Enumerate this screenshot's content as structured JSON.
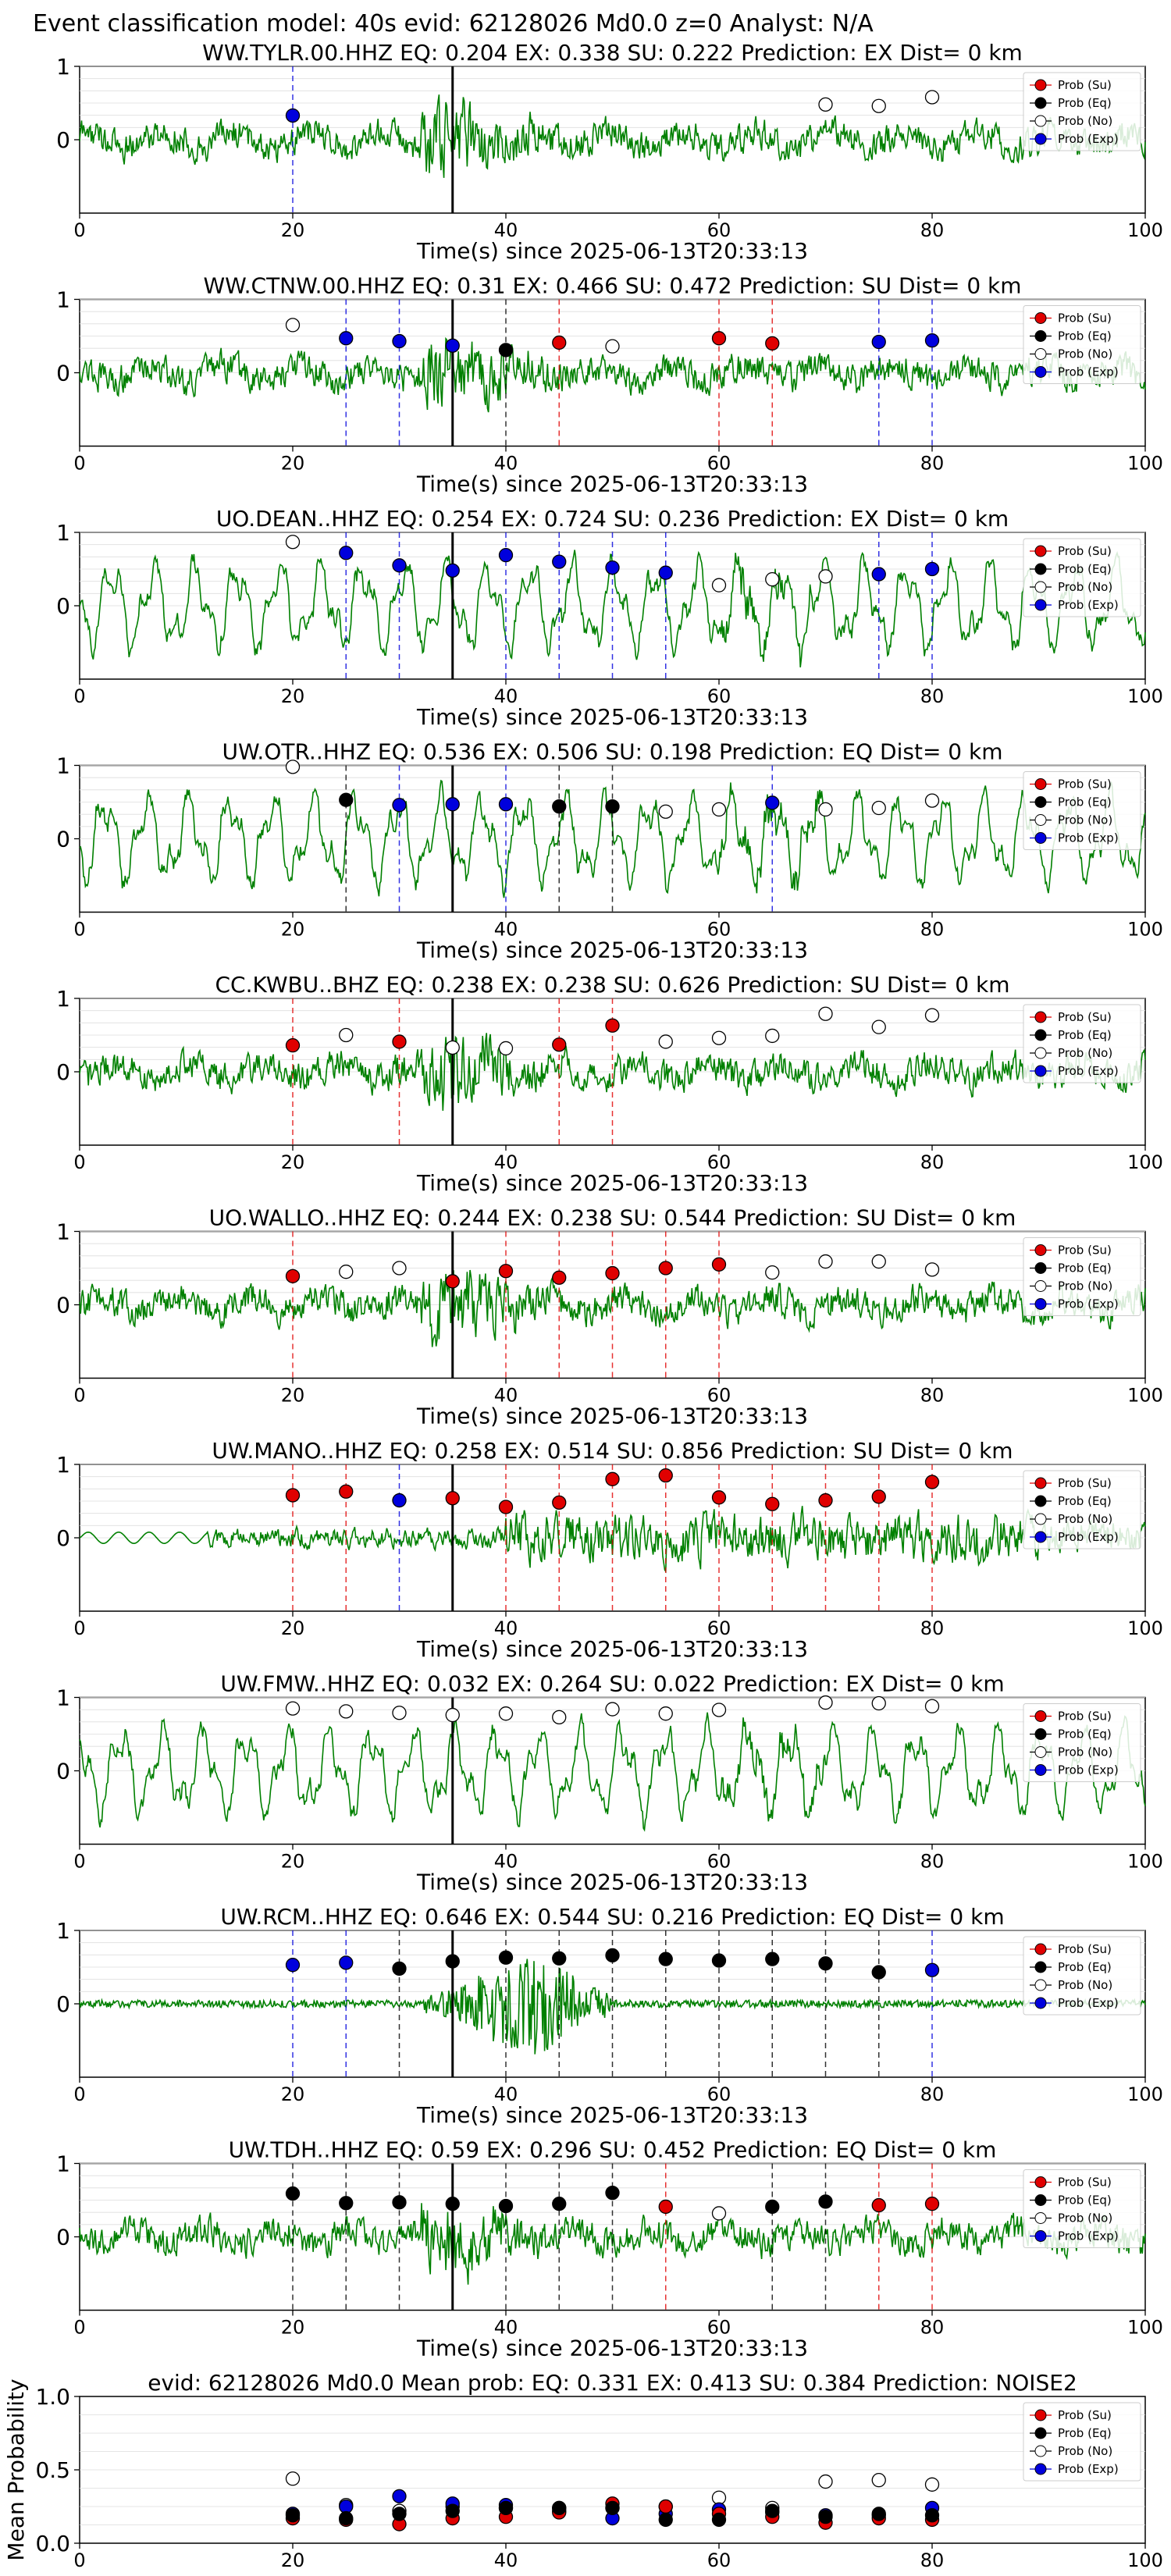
{
  "title": "Event classification model: 40s evid: 62128026 Md0.0 z=0 Analyst: N/A",
  "xlabel": "Time(s) since 2025-06-13T20:33:13",
  "legend": [
    "Prob (Su)",
    "Prob (Eq)",
    "Prob (No)",
    "Prob (Exp)"
  ],
  "colors": {
    "su": "#e00000",
    "eq": "#000000",
    "no": "#ffffff",
    "exp": "#0000dd",
    "trace": "#008000",
    "event_line": "#000000"
  },
  "chart_data": [
    {
      "type": "line",
      "title": "WW.TYLR.00.HHZ   EQ: 0.204  EX: 0.338  SU: 0.222   Prediction: EX    Dist= 0 km",
      "xlim": [
        0,
        100
      ],
      "ylim": [
        -1,
        1
      ],
      "xticks": [
        0,
        20,
        40,
        60,
        80,
        100
      ],
      "yticks": [
        "1",
        "0"
      ],
      "event_time": 35,
      "trace": "broadband",
      "points": [
        {
          "x": 20,
          "y": 0.33,
          "class": "exp"
        },
        {
          "x": 70,
          "y": 0.48,
          "class": "no"
        },
        {
          "x": 75,
          "y": 0.46,
          "class": "no"
        },
        {
          "x": 80,
          "y": 0.58,
          "class": "no"
        }
      ]
    },
    {
      "type": "line",
      "title": "WW.CTNW.00.HHZ   EQ: 0.31  EX: 0.466  SU: 0.472   Prediction: SU    Dist= 0 km",
      "xlim": [
        0,
        100
      ],
      "ylim": [
        -1,
        1
      ],
      "xticks": [
        0,
        20,
        40,
        60,
        80,
        100
      ],
      "yticks": [
        "1",
        "0"
      ],
      "event_time": 35,
      "trace": "broadband",
      "points": [
        {
          "x": 20,
          "y": 0.65,
          "class": "no"
        },
        {
          "x": 25,
          "y": 0.47,
          "class": "exp"
        },
        {
          "x": 30,
          "y": 0.43,
          "class": "exp"
        },
        {
          "x": 35,
          "y": 0.37,
          "class": "exp"
        },
        {
          "x": 40,
          "y": 0.31,
          "class": "eq"
        },
        {
          "x": 45,
          "y": 0.41,
          "class": "su"
        },
        {
          "x": 50,
          "y": 0.36,
          "class": "no"
        },
        {
          "x": 60,
          "y": 0.47,
          "class": "su"
        },
        {
          "x": 65,
          "y": 0.4,
          "class": "su"
        },
        {
          "x": 75,
          "y": 0.42,
          "class": "exp"
        },
        {
          "x": 80,
          "y": 0.44,
          "class": "exp"
        }
      ]
    },
    {
      "type": "line",
      "title": "UO.DEAN..HHZ   EQ: 0.254  EX: 0.724  SU: 0.236   Prediction: EX    Dist= 0 km",
      "xlim": [
        0,
        100
      ],
      "ylim": [
        -1,
        1
      ],
      "xticks": [
        0,
        20,
        40,
        60,
        80,
        100
      ],
      "yticks": [
        "1",
        "0"
      ],
      "event_time": 35,
      "trace": "oscillatory",
      "points": [
        {
          "x": 20,
          "y": 0.87,
          "class": "no"
        },
        {
          "x": 25,
          "y": 0.72,
          "class": "exp"
        },
        {
          "x": 30,
          "y": 0.55,
          "class": "exp"
        },
        {
          "x": 35,
          "y": 0.48,
          "class": "exp"
        },
        {
          "x": 40,
          "y": 0.69,
          "class": "exp"
        },
        {
          "x": 45,
          "y": 0.6,
          "class": "exp"
        },
        {
          "x": 50,
          "y": 0.52,
          "class": "exp"
        },
        {
          "x": 55,
          "y": 0.45,
          "class": "exp"
        },
        {
          "x": 60,
          "y": 0.28,
          "class": "no"
        },
        {
          "x": 65,
          "y": 0.36,
          "class": "no"
        },
        {
          "x": 70,
          "y": 0.4,
          "class": "no"
        },
        {
          "x": 75,
          "y": 0.43,
          "class": "exp"
        },
        {
          "x": 80,
          "y": 0.5,
          "class": "exp"
        }
      ]
    },
    {
      "type": "line",
      "title": "UW.OTR..HHZ   EQ: 0.536  EX: 0.506  SU: 0.198   Prediction: EQ    Dist= 0 km",
      "xlim": [
        0,
        100
      ],
      "ylim": [
        -1,
        1
      ],
      "xticks": [
        0,
        20,
        40,
        60,
        80,
        100
      ],
      "yticks": [
        "1",
        "0"
      ],
      "event_time": 35,
      "trace": "oscillatory",
      "points": [
        {
          "x": 20,
          "y": 0.98,
          "class": "no"
        },
        {
          "x": 25,
          "y": 0.53,
          "class": "eq"
        },
        {
          "x": 30,
          "y": 0.46,
          "class": "exp"
        },
        {
          "x": 35,
          "y": 0.47,
          "class": "exp"
        },
        {
          "x": 40,
          "y": 0.47,
          "class": "exp"
        },
        {
          "x": 45,
          "y": 0.44,
          "class": "eq"
        },
        {
          "x": 50,
          "y": 0.44,
          "class": "eq"
        },
        {
          "x": 55,
          "y": 0.37,
          "class": "no"
        },
        {
          "x": 60,
          "y": 0.4,
          "class": "no"
        },
        {
          "x": 65,
          "y": 0.49,
          "class": "exp"
        },
        {
          "x": 70,
          "y": 0.4,
          "class": "no"
        },
        {
          "x": 75,
          "y": 0.42,
          "class": "no"
        },
        {
          "x": 80,
          "y": 0.52,
          "class": "no"
        }
      ]
    },
    {
      "type": "line",
      "title": "CC.KWBU..BHZ   EQ: 0.238  EX: 0.238  SU: 0.626   Prediction: SU    Dist= 0 km",
      "xlim": [
        0,
        100
      ],
      "ylim": [
        -1,
        1
      ],
      "xticks": [
        0,
        20,
        40,
        60,
        80,
        100
      ],
      "yticks": [
        "1",
        "0"
      ],
      "event_time": 35,
      "trace": "broadband",
      "points": [
        {
          "x": 20,
          "y": 0.36,
          "class": "su"
        },
        {
          "x": 25,
          "y": 0.5,
          "class": "no"
        },
        {
          "x": 30,
          "y": 0.41,
          "class": "su"
        },
        {
          "x": 35,
          "y": 0.33,
          "class": "no"
        },
        {
          "x": 40,
          "y": 0.32,
          "class": "no"
        },
        {
          "x": 45,
          "y": 0.37,
          "class": "su"
        },
        {
          "x": 50,
          "y": 0.63,
          "class": "su"
        },
        {
          "x": 55,
          "y": 0.41,
          "class": "no"
        },
        {
          "x": 60,
          "y": 0.46,
          "class": "no"
        },
        {
          "x": 65,
          "y": 0.49,
          "class": "no"
        },
        {
          "x": 70,
          "y": 0.79,
          "class": "no"
        },
        {
          "x": 75,
          "y": 0.61,
          "class": "no"
        },
        {
          "x": 80,
          "y": 0.77,
          "class": "no"
        }
      ]
    },
    {
      "type": "line",
      "title": "UO.WALLO..HHZ   EQ: 0.244  EX: 0.238  SU: 0.544   Prediction: SU    Dist= 0 km",
      "xlim": [
        0,
        100
      ],
      "ylim": [
        -1,
        1
      ],
      "xticks": [
        0,
        20,
        40,
        60,
        80,
        100
      ],
      "yticks": [
        "1",
        "0"
      ],
      "event_time": 35,
      "trace": "broadband",
      "points": [
        {
          "x": 20,
          "y": 0.39,
          "class": "su"
        },
        {
          "x": 25,
          "y": 0.45,
          "class": "no"
        },
        {
          "x": 30,
          "y": 0.5,
          "class": "no"
        },
        {
          "x": 35,
          "y": 0.32,
          "class": "su"
        },
        {
          "x": 40,
          "y": 0.46,
          "class": "su"
        },
        {
          "x": 45,
          "y": 0.37,
          "class": "su"
        },
        {
          "x": 50,
          "y": 0.43,
          "class": "su"
        },
        {
          "x": 55,
          "y": 0.5,
          "class": "su"
        },
        {
          "x": 60,
          "y": 0.55,
          "class": "su"
        },
        {
          "x": 65,
          "y": 0.44,
          "class": "no"
        },
        {
          "x": 70,
          "y": 0.59,
          "class": "no"
        },
        {
          "x": 75,
          "y": 0.59,
          "class": "no"
        },
        {
          "x": 80,
          "y": 0.48,
          "class": "no"
        }
      ]
    },
    {
      "type": "line",
      "title": "UW.MANO..HHZ   EQ: 0.258  EX: 0.514  SU: 0.856   Prediction: SU    Dist= 0 km",
      "xlim": [
        0,
        100
      ],
      "ylim": [
        -1,
        1
      ],
      "xticks": [
        0,
        20,
        40,
        60,
        80,
        100
      ],
      "yticks": [
        "1",
        "0"
      ],
      "event_time": 35,
      "trace": "quiet-start",
      "points": [
        {
          "x": 20,
          "y": 0.58,
          "class": "su"
        },
        {
          "x": 25,
          "y": 0.63,
          "class": "su"
        },
        {
          "x": 30,
          "y": 0.51,
          "class": "exp"
        },
        {
          "x": 35,
          "y": 0.54,
          "class": "su"
        },
        {
          "x": 40,
          "y": 0.42,
          "class": "su"
        },
        {
          "x": 45,
          "y": 0.48,
          "class": "su"
        },
        {
          "x": 50,
          "y": 0.8,
          "class": "su"
        },
        {
          "x": 55,
          "y": 0.85,
          "class": "su"
        },
        {
          "x": 60,
          "y": 0.55,
          "class": "su"
        },
        {
          "x": 65,
          "y": 0.46,
          "class": "su"
        },
        {
          "x": 70,
          "y": 0.51,
          "class": "su"
        },
        {
          "x": 75,
          "y": 0.56,
          "class": "su"
        },
        {
          "x": 80,
          "y": 0.76,
          "class": "su"
        }
      ]
    },
    {
      "type": "line",
      "title": "UW.FMW..HHZ   EQ: 0.032  EX: 0.264  SU: 0.022   Prediction: EX    Dist= 0 km",
      "xlim": [
        0,
        100
      ],
      "ylim": [
        -1,
        1
      ],
      "xticks": [
        0,
        20,
        40,
        60,
        80,
        100
      ],
      "yticks": [
        "1",
        "0"
      ],
      "event_time": 35,
      "trace": "oscillatory",
      "points": [
        {
          "x": 20,
          "y": 0.85,
          "class": "no"
        },
        {
          "x": 25,
          "y": 0.81,
          "class": "no"
        },
        {
          "x": 30,
          "y": 0.79,
          "class": "no"
        },
        {
          "x": 35,
          "y": 0.76,
          "class": "no"
        },
        {
          "x": 40,
          "y": 0.78,
          "class": "no"
        },
        {
          "x": 45,
          "y": 0.73,
          "class": "no"
        },
        {
          "x": 50,
          "y": 0.84,
          "class": "no"
        },
        {
          "x": 55,
          "y": 0.78,
          "class": "no"
        },
        {
          "x": 60,
          "y": 0.83,
          "class": "no"
        },
        {
          "x": 70,
          "y": 0.93,
          "class": "no"
        },
        {
          "x": 75,
          "y": 0.92,
          "class": "no"
        },
        {
          "x": 80,
          "y": 0.88,
          "class": "no"
        }
      ]
    },
    {
      "type": "line",
      "title": "UW.RCM..HHZ   EQ: 0.646  EX: 0.544  SU: 0.216   Prediction: EQ    Dist= 0 km",
      "xlim": [
        0,
        100
      ],
      "ylim": [
        -1,
        1
      ],
      "xticks": [
        0,
        20,
        40,
        60,
        80,
        100
      ],
      "yticks": [
        "1",
        "0"
      ],
      "event_time": 35,
      "trace": "quiet-burst",
      "points": [
        {
          "x": 20,
          "y": 0.53,
          "class": "exp"
        },
        {
          "x": 25,
          "y": 0.56,
          "class": "exp"
        },
        {
          "x": 30,
          "y": 0.48,
          "class": "eq"
        },
        {
          "x": 35,
          "y": 0.58,
          "class": "eq"
        },
        {
          "x": 40,
          "y": 0.63,
          "class": "eq"
        },
        {
          "x": 45,
          "y": 0.62,
          "class": "eq"
        },
        {
          "x": 50,
          "y": 0.66,
          "class": "eq"
        },
        {
          "x": 55,
          "y": 0.61,
          "class": "eq"
        },
        {
          "x": 60,
          "y": 0.59,
          "class": "eq"
        },
        {
          "x": 65,
          "y": 0.61,
          "class": "eq"
        },
        {
          "x": 70,
          "y": 0.55,
          "class": "eq"
        },
        {
          "x": 75,
          "y": 0.43,
          "class": "eq"
        },
        {
          "x": 80,
          "y": 0.46,
          "class": "exp"
        }
      ]
    },
    {
      "type": "line",
      "title": "UW.TDH..HHZ   EQ: 0.59  EX: 0.296  SU: 0.452   Prediction: EQ    Dist= 0 km",
      "xlim": [
        0,
        100
      ],
      "ylim": [
        -1,
        1
      ],
      "xticks": [
        0,
        20,
        40,
        60,
        80,
        100
      ],
      "yticks": [
        "1",
        "0"
      ],
      "event_time": 35,
      "trace": "broadband",
      "points": [
        {
          "x": 20,
          "y": 0.59,
          "class": "eq"
        },
        {
          "x": 25,
          "y": 0.46,
          "class": "eq"
        },
        {
          "x": 30,
          "y": 0.47,
          "class": "eq"
        },
        {
          "x": 35,
          "y": 0.45,
          "class": "eq"
        },
        {
          "x": 40,
          "y": 0.42,
          "class": "eq"
        },
        {
          "x": 45,
          "y": 0.45,
          "class": "eq"
        },
        {
          "x": 50,
          "y": 0.6,
          "class": "eq"
        },
        {
          "x": 55,
          "y": 0.41,
          "class": "su"
        },
        {
          "x": 60,
          "y": 0.32,
          "class": "no"
        },
        {
          "x": 65,
          "y": 0.41,
          "class": "eq"
        },
        {
          "x": 70,
          "y": 0.48,
          "class": "eq"
        },
        {
          "x": 75,
          "y": 0.43,
          "class": "su"
        },
        {
          "x": 80,
          "y": 0.45,
          "class": "su"
        }
      ]
    },
    {
      "type": "scatter",
      "title": "evid: 62128026  Md0.0   Mean prob:   EQ: 0.331  EX: 0.413  SU: 0.384   Prediction: NOISE2",
      "ylabel": "Mean Probability",
      "xlim": [
        0,
        100
      ],
      "ylim": [
        0,
        1
      ],
      "xticks": [
        0,
        20,
        40,
        60,
        80,
        100
      ],
      "yticks": [
        "0.0",
        "0.5",
        "1.0"
      ],
      "x": [
        20,
        25,
        30,
        35,
        40,
        45,
        50,
        55,
        60,
        65,
        70,
        75,
        80
      ],
      "series": [
        {
          "name": "Prob (No)",
          "class": "no",
          "values": [
            0.44,
            0.26,
            0.22,
            0.25,
            0.24,
            0.24,
            0.24,
            0.25,
            0.31,
            0.24,
            0.42,
            0.43,
            0.4
          ]
        },
        {
          "name": "Prob (Exp)",
          "class": "exp",
          "values": [
            0.2,
            0.25,
            0.32,
            0.27,
            0.26,
            0.22,
            0.17,
            0.2,
            0.23,
            0.21,
            0.19,
            0.19,
            0.24
          ]
        },
        {
          "name": "Prob (Su)",
          "class": "su",
          "values": [
            0.17,
            0.16,
            0.13,
            0.17,
            0.18,
            0.21,
            0.27,
            0.25,
            0.2,
            0.18,
            0.14,
            0.17,
            0.16
          ]
        },
        {
          "name": "Prob (Eq)",
          "class": "eq",
          "values": [
            0.19,
            0.17,
            0.2,
            0.22,
            0.24,
            0.24,
            0.24,
            0.16,
            0.16,
            0.22,
            0.18,
            0.2,
            0.19
          ]
        }
      ]
    }
  ]
}
